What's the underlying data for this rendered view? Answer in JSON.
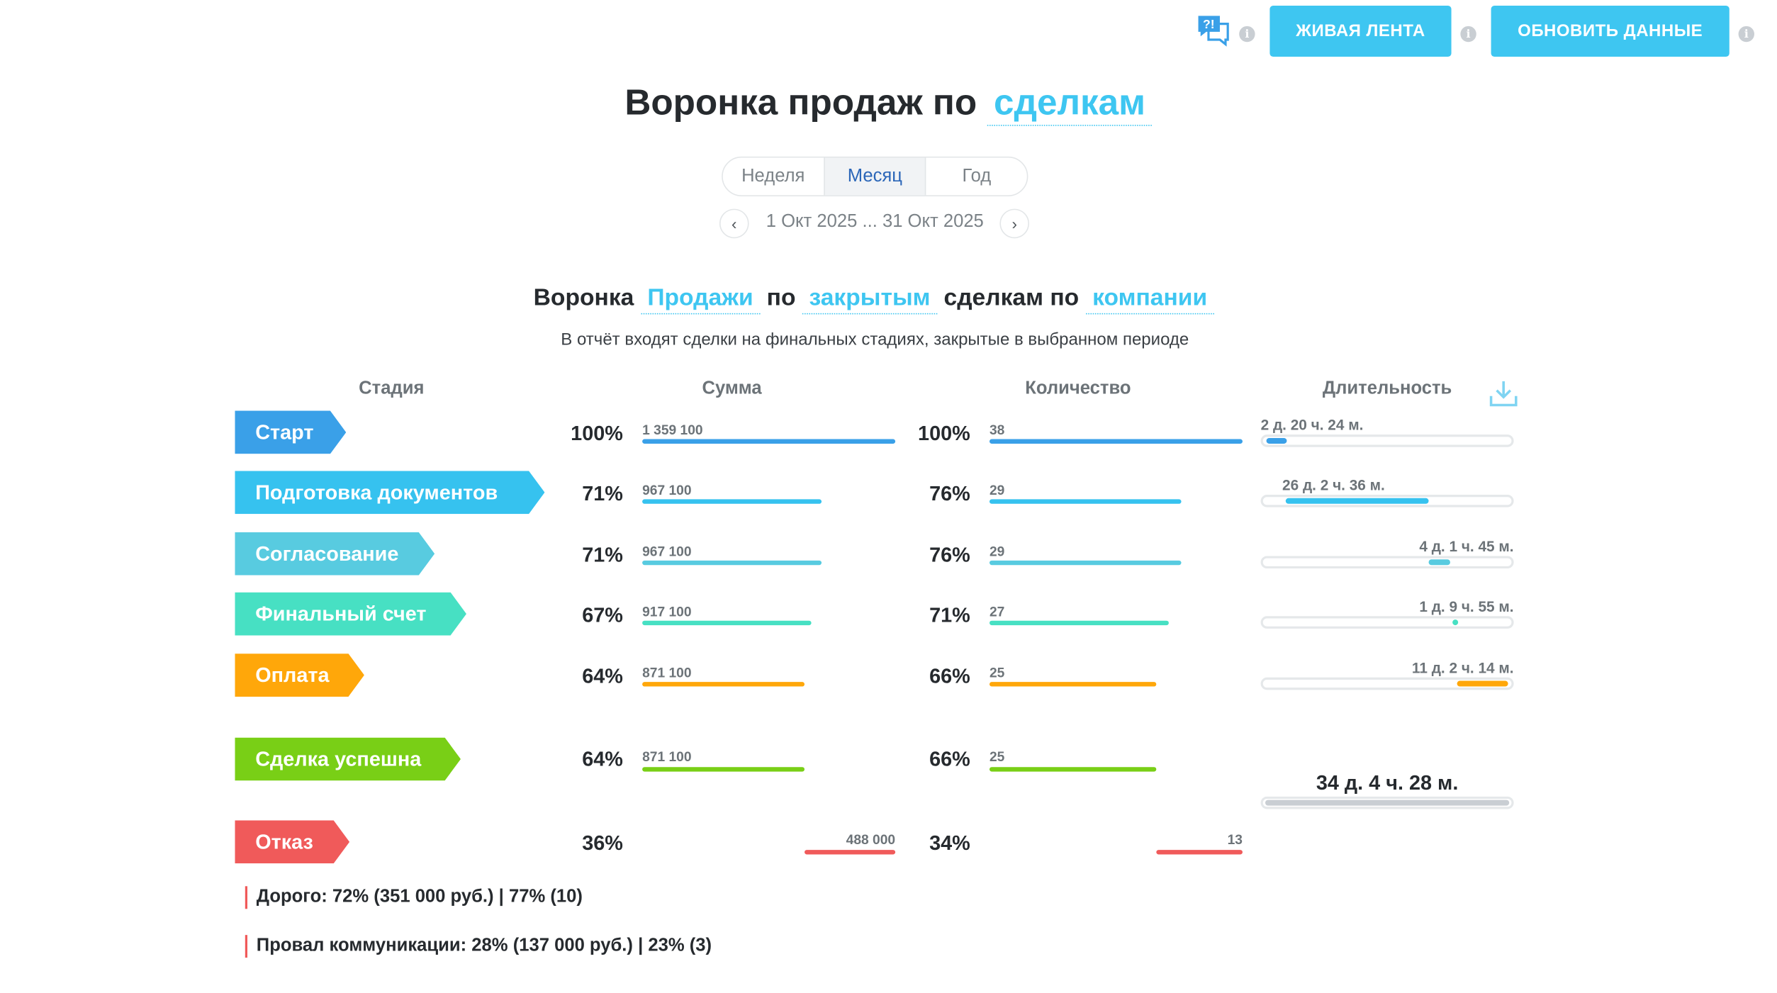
{
  "toolbar": {
    "live_feed_label": "ЖИВАЯ ЛЕНТА",
    "refresh_label": "ОБНОВИТЬ ДАННЫЕ",
    "help_icon": "help-chat-icon",
    "info_glyph": "i"
  },
  "title": {
    "prefix": "Воронка продаж по",
    "entity": "сделкам"
  },
  "period": {
    "tabs": [
      "Неделя",
      "Месяц",
      "Год"
    ],
    "active": "Месяц",
    "range": "1 Окт 2025 ... 31 Окт 2025",
    "prev_glyph": "‹",
    "next_glyph": "›"
  },
  "subtitle": {
    "w1": "Воронка",
    "pipeline": "Продажи",
    "w2": "по",
    "status": "закрытым",
    "w3": "сделкам по",
    "scope": "компании"
  },
  "note": "В отчёт входят сделки на финальных стадиях, закрытые в выбранном периоде",
  "columns": {
    "stage": "Стадия",
    "sum": "Сумма",
    "count": "Количество",
    "duration": "Длительность",
    "download_icon": "download-icon"
  },
  "stages": [
    {
      "name": "Старт",
      "color": "#3aa0e8",
      "sum_pct": "100%",
      "sum": "1 359 100",
      "sum_fraction": 1.0,
      "count_pct": "100%",
      "count": "38",
      "count_fraction": 1.0,
      "duration": "2 д. 20 ч. 24 м."
    },
    {
      "name": "Подготовка документов",
      "color": "#36c2ef",
      "sum_pct": "71%",
      "sum": "967 100",
      "sum_fraction": 0.71,
      "count_pct": "76%",
      "count": "29",
      "count_fraction": 0.76,
      "duration": "26 д. 2 ч. 36 м."
    },
    {
      "name": "Согласование",
      "color": "#58cbe0",
      "sum_pct": "71%",
      "sum": "967 100",
      "sum_fraction": 0.71,
      "count_pct": "76%",
      "count": "29",
      "count_fraction": 0.76,
      "duration": "4 д. 1 ч. 45 м."
    },
    {
      "name": "Финальный счет",
      "color": "#47e0c3",
      "sum_pct": "67%",
      "sum": "917 100",
      "sum_fraction": 0.67,
      "count_pct": "71%",
      "count": "27",
      "count_fraction": 0.71,
      "duration": "1 д. 9 ч. 55 м."
    },
    {
      "name": "Оплата",
      "color": "#ffa70a",
      "sum_pct": "64%",
      "sum": "871 100",
      "sum_fraction": 0.64,
      "count_pct": "66%",
      "count": "25",
      "count_fraction": 0.66,
      "duration": "11 д. 2 ч. 14 м."
    }
  ],
  "success": {
    "name": "Сделка успешна",
    "color": "#79cf16",
    "sum_pct": "64%",
    "sum": "871 100",
    "sum_fraction": 0.64,
    "count_pct": "66%",
    "count": "25",
    "count_fraction": 0.66
  },
  "total_duration": "34 д. 4 ч. 28 м.",
  "fail": {
    "name": "Отказ",
    "color": "#f05a5a",
    "sum_pct": "36%",
    "sum": "488 000",
    "sum_fraction": 0.36,
    "count_pct": "34%",
    "count": "13",
    "count_fraction": 0.34
  },
  "fail_reasons": [
    "Дорого: 72% (351 000 руб.) | 77% (10)",
    "Провал коммуникации: 28% (137 000 руб.) | 23% (3)"
  ]
}
